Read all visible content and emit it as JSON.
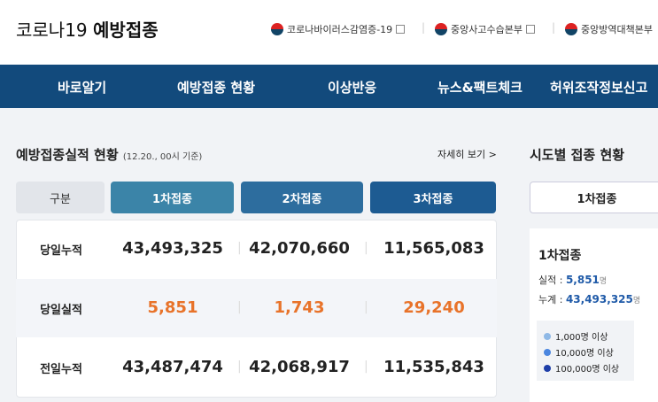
{
  "header": {
    "title_main": "코로나19",
    "title_bold": "예방접종",
    "links": [
      "코로나바이러스감염증-19",
      "중앙사고수습본부",
      "중앙방역대책본부"
    ]
  },
  "nav": [
    "바로알기",
    "예방접종 현황",
    "이상반응",
    "뉴스&팩트체크",
    "허위조작정보신고"
  ],
  "status": {
    "title": "예방접종실적 현황",
    "basis": "(12.20., 00시 기준)",
    "more": "자세히 보기 >",
    "headers": [
      "구분",
      "1차접종",
      "2차접종",
      "3차접종"
    ],
    "rows": [
      [
        "당일누적",
        "43,493,325",
        "42,070,660",
        "11,565,083"
      ],
      [
        "당일실적",
        "5,851",
        "1,743",
        "29,240"
      ],
      [
        "전일누적",
        "43,487,474",
        "42,068,917",
        "11,535,843"
      ]
    ]
  },
  "region": {
    "title": "시도별 접종 현황",
    "tab": "1차접종",
    "panel_title": "1차접종",
    "daily_label": "실적 :",
    "daily_value": "5,851",
    "total_label": "누계 :",
    "total_value": "43,493,325",
    "unit": "명",
    "legend": [
      "1,000명 이상",
      "10,000명 이상",
      "100,000명 이상"
    ]
  }
}
